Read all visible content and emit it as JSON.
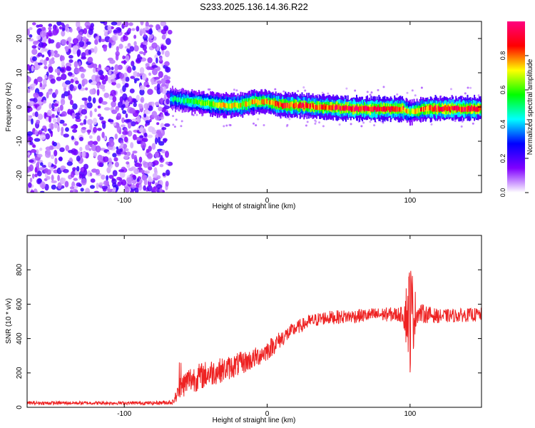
{
  "figure": {
    "title": "S233.2025.136.14.36.R22"
  },
  "chart_data": [
    {
      "type": "heatmap",
      "xlabel": "Height of straight line (km)",
      "ylabel": "Frequency (Hz)",
      "xlim": [
        -168,
        150
      ],
      "ylim": [
        -25,
        25
      ],
      "xticks": [
        -100,
        0,
        100
      ],
      "yticks": [
        20,
        10,
        0,
        -10,
        -20
      ],
      "grid": false,
      "noise_region_x": [
        -168,
        -68
      ],
      "ridge": {
        "x": [
          -68,
          -60,
          -50,
          -40,
          -30,
          -20,
          -10,
          0,
          10,
          20,
          40,
          60,
          80,
          95,
          100,
          110,
          130,
          150
        ],
        "y": [
          2.5,
          2.0,
          1.5,
          1.0,
          0.5,
          0.5,
          1.5,
          1.5,
          0.5,
          0.5,
          0.0,
          -0.5,
          -0.5,
          -0.5,
          -1.5,
          -0.5,
          -0.5,
          -0.5
        ],
        "amp": [
          0.45,
          0.5,
          0.6,
          0.65,
          0.7,
          0.7,
          0.75,
          0.75,
          0.85,
          0.85,
          0.85,
          0.9,
          0.9,
          0.85,
          0.6,
          0.85,
          0.9,
          0.9
        ]
      },
      "colorbar": {
        "label": "Normalized spectral amplitude",
        "range": [
          0,
          1
        ],
        "ticks": [
          "0.0",
          "0.2",
          "0.4",
          "0.6",
          "0.8"
        ],
        "colors": [
          "#ffffff",
          "#8000ff",
          "#0000ff",
          "#00ffff",
          "#00ff00",
          "#ffff00",
          "#ff0000",
          "#ff0080"
        ]
      }
    },
    {
      "type": "line",
      "xlabel": "Height of straight line (km)",
      "ylabel": "SNR (10 * v/v)",
      "xlim": [
        -168,
        150
      ],
      "ylim": [
        0,
        1000
      ],
      "xticks": [
        -100,
        0,
        100
      ],
      "yticks": [
        0,
        200,
        400,
        600,
        800
      ],
      "grid": false,
      "color": "#ee2222",
      "series": [
        {
          "x": [
            -168,
            -80,
            -66,
            -60,
            -55,
            -50,
            -40,
            -30,
            -20,
            -10,
            0,
            10,
            20,
            30,
            40,
            60,
            80,
            95,
            100,
            105,
            120,
            150
          ],
          "values": [
            25,
            25,
            30,
            120,
            160,
            170,
            200,
            220,
            250,
            280,
            330,
            400,
            460,
            500,
            520,
            530,
            540,
            540,
            540,
            550,
            530,
            540
          ],
          "noise": [
            10,
            10,
            15,
            70,
            80,
            80,
            80,
            70,
            70,
            60,
            60,
            50,
            40,
            40,
            40,
            40,
            40,
            45,
            350,
            60,
            40,
            40
          ]
        }
      ]
    }
  ]
}
